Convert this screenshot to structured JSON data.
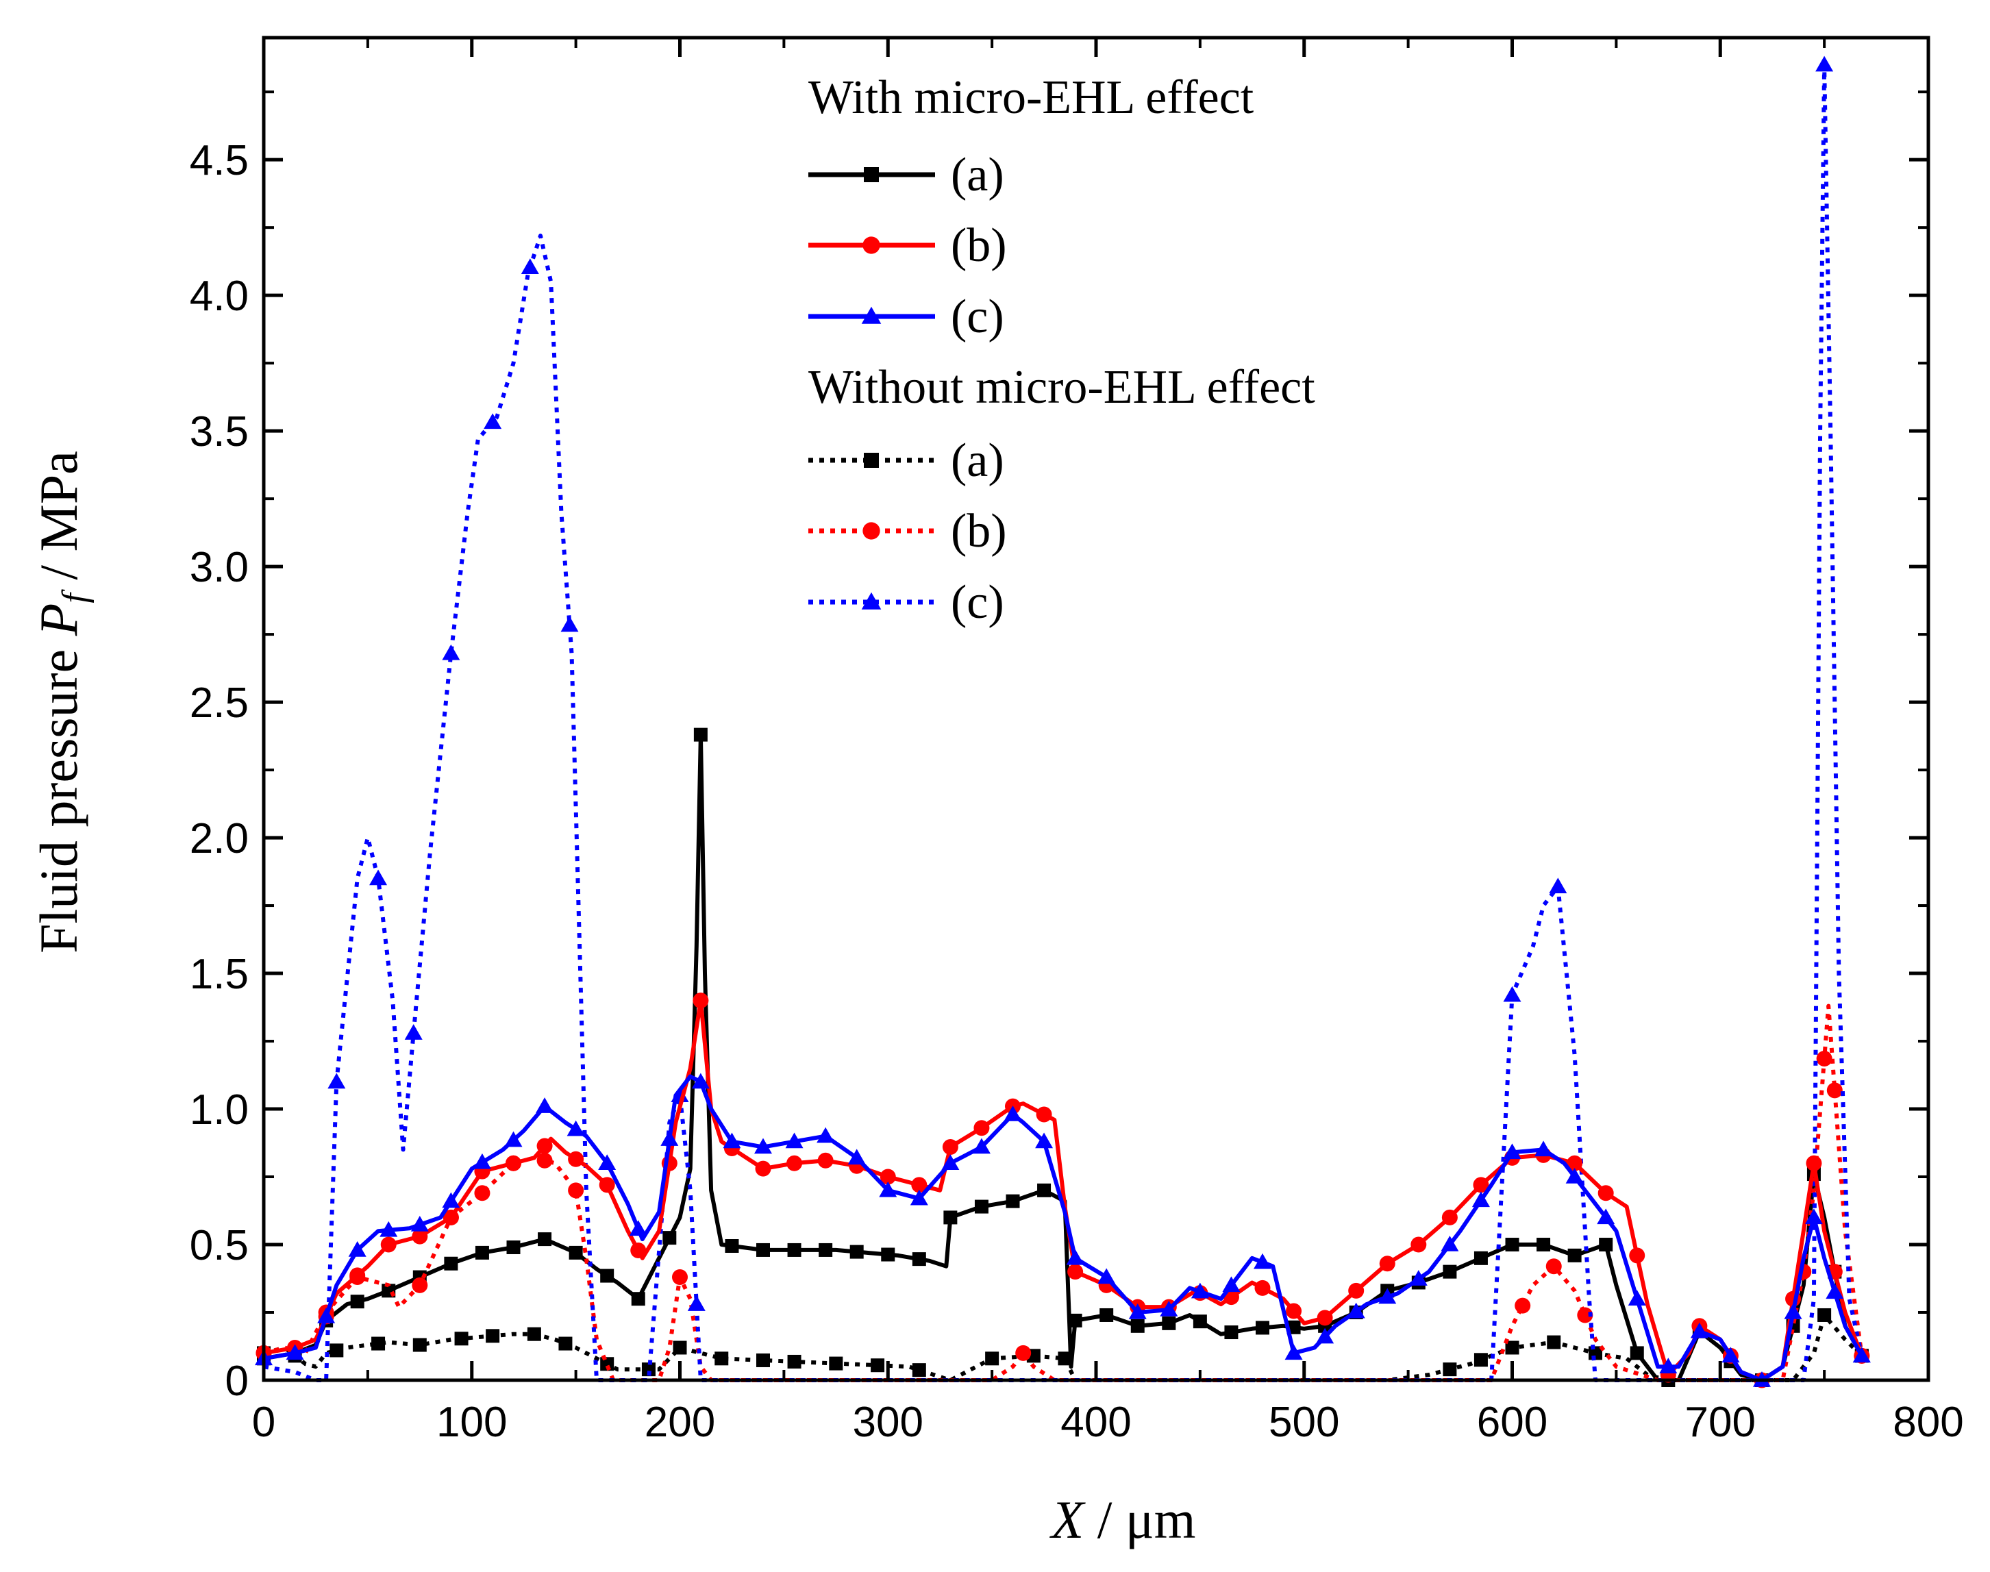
{
  "chart_data": {
    "type": "line",
    "xlabel": "X / μm",
    "xlabel_parts": {
      "var": "X",
      "unit": " / μm"
    },
    "ylabel": "Fluid pressure  Pf / MPa",
    "ylabel_parts": {
      "prefix": "Fluid pressure ",
      "var": "P",
      "sub": "f",
      "unit": " / MPa"
    },
    "xlim": [
      0,
      800
    ],
    "ylim": [
      0,
      4.95
    ],
    "xticks": [
      0,
      100,
      200,
      300,
      400,
      500,
      600,
      700,
      800
    ],
    "yticks": [
      0,
      0.5,
      1.0,
      1.5,
      2.0,
      2.5,
      3.0,
      3.5,
      4.0,
      4.5
    ],
    "xtick_labels": [
      "0",
      "100",
      "200",
      "300",
      "400",
      "500",
      "600",
      "700",
      "800"
    ],
    "ytick_labels": [
      "0",
      "0.5",
      "1.0",
      "1.5",
      "2.0",
      "2.5",
      "3.0",
      "3.5",
      "4.0",
      "4.5"
    ],
    "grid": false,
    "legend_position": "top-center",
    "legend_groups": [
      {
        "title": "With micro-EHL effect",
        "entries": [
          "(a)",
          "(b)",
          "(c)"
        ]
      },
      {
        "title": "Without micro-EHL effect",
        "entries": [
          "(a)",
          "(b)",
          "(c)"
        ]
      }
    ],
    "series": [
      {
        "name": "(a) with micro-EHL",
        "color": "#000000",
        "style": "solid",
        "marker": "square",
        "x": [
          0,
          15,
          25,
          30,
          40,
          50,
          60,
          75,
          90,
          105,
          120,
          135,
          150,
          160,
          170,
          180,
          190,
          200,
          205,
          208,
          210,
          212,
          215,
          220,
          240,
          260,
          275,
          290,
          305,
          320,
          328,
          330,
          345,
          360,
          375,
          385,
          388,
          390,
          405,
          420,
          435,
          445,
          460,
          475,
          490,
          500,
          510,
          525,
          540,
          555,
          570,
          585,
          600,
          615,
          630,
          645,
          650,
          660,
          670,
          680,
          690,
          700,
          710,
          720,
          730,
          740,
          745,
          750,
          760,
          768
        ],
        "y": [
          0.08,
          0.1,
          0.13,
          0.22,
          0.28,
          0.3,
          0.33,
          0.38,
          0.43,
          0.47,
          0.49,
          0.52,
          0.47,
          0.41,
          0.36,
          0.3,
          0.45,
          0.6,
          0.78,
          1.6,
          2.38,
          1.5,
          0.7,
          0.5,
          0.48,
          0.48,
          0.48,
          0.47,
          0.46,
          0.44,
          0.42,
          0.6,
          0.64,
          0.66,
          0.7,
          0.66,
          0.05,
          0.22,
          0.24,
          0.2,
          0.21,
          0.24,
          0.17,
          0.19,
          0.2,
          0.19,
          0.2,
          0.25,
          0.33,
          0.36,
          0.4,
          0.45,
          0.5,
          0.5,
          0.46,
          0.5,
          0.35,
          0.1,
          0.0,
          0.0,
          0.18,
          0.12,
          0.02,
          0.0,
          0.05,
          0.35,
          0.76,
          0.6,
          0.2,
          0.09
        ],
        "markers_x": [
          0,
          15,
          30,
          45,
          60,
          75,
          90,
          105,
          120,
          135,
          150,
          165,
          180,
          195,
          210,
          225,
          240,
          255,
          270,
          285,
          300,
          315,
          330,
          345,
          360,
          375,
          390,
          405,
          420,
          435,
          450,
          465,
          480,
          495,
          510,
          525,
          540,
          555,
          570,
          585,
          600,
          615,
          630,
          645,
          660,
          675,
          690,
          705,
          720,
          735,
          745,
          755,
          768
        ]
      },
      {
        "name": "(b) with micro-EHL",
        "color": "#ff0000",
        "style": "solid",
        "marker": "circle",
        "x": [
          0,
          15,
          25,
          35,
          50,
          60,
          75,
          90,
          105,
          120,
          130,
          138,
          145,
          155,
          165,
          175,
          182,
          190,
          198,
          205,
          210,
          215,
          220,
          240,
          255,
          270,
          285,
          300,
          315,
          325,
          330,
          345,
          360,
          365,
          375,
          380,
          385,
          390,
          405,
          420,
          435,
          448,
          460,
          475,
          490,
          500,
          510,
          525,
          540,
          555,
          570,
          585,
          600,
          615,
          630,
          645,
          655,
          665,
          675,
          685,
          690,
          700,
          710,
          720,
          730,
          740,
          745,
          750,
          760,
          768
        ],
        "y": [
          0.1,
          0.12,
          0.15,
          0.32,
          0.42,
          0.5,
          0.53,
          0.6,
          0.77,
          0.8,
          0.82,
          0.89,
          0.84,
          0.79,
          0.72,
          0.55,
          0.45,
          0.55,
          0.95,
          1.15,
          1.4,
          1.0,
          0.88,
          0.78,
          0.8,
          0.81,
          0.79,
          0.75,
          0.72,
          0.7,
          0.86,
          0.93,
          1.01,
          1.02,
          0.98,
          0.96,
          0.64,
          0.4,
          0.35,
          0.27,
          0.27,
          0.33,
          0.28,
          0.36,
          0.3,
          0.21,
          0.23,
          0.33,
          0.43,
          0.5,
          0.6,
          0.72,
          0.82,
          0.83,
          0.8,
          0.69,
          0.64,
          0.28,
          0.02,
          0.1,
          0.2,
          0.15,
          0.03,
          0.0,
          0.05,
          0.55,
          0.8,
          0.55,
          0.25,
          0.09
        ],
        "markers_x": [
          0,
          15,
          30,
          45,
          60,
          75,
          90,
          105,
          120,
          135,
          150,
          165,
          180,
          195,
          210,
          225,
          240,
          255,
          270,
          285,
          300,
          315,
          330,
          345,
          360,
          375,
          390,
          405,
          420,
          435,
          450,
          465,
          480,
          495,
          510,
          525,
          540,
          555,
          570,
          585,
          600,
          615,
          630,
          645,
          660,
          675,
          690,
          705,
          720,
          735,
          745,
          755,
          768
        ]
      },
      {
        "name": "(c) with micro-EHL",
        "color": "#0000ff",
        "style": "solid",
        "marker": "triangle",
        "x": [
          0,
          15,
          25,
          35,
          45,
          55,
          70,
          85,
          100,
          115,
          125,
          135,
          145,
          155,
          165,
          175,
          182,
          190,
          198,
          205,
          210,
          215,
          225,
          240,
          255,
          270,
          285,
          300,
          315,
          330,
          345,
          360,
          365,
          375,
          385,
          390,
          405,
          420,
          435,
          445,
          460,
          475,
          485,
          495,
          505,
          515,
          530,
          545,
          560,
          575,
          590,
          600,
          615,
          625,
          635,
          650,
          660,
          670,
          680,
          690,
          700,
          710,
          720,
          730,
          740,
          745,
          750,
          760,
          768
        ],
        "y": [
          0.08,
          0.1,
          0.12,
          0.35,
          0.48,
          0.55,
          0.56,
          0.6,
          0.78,
          0.85,
          0.92,
          1.01,
          0.95,
          0.9,
          0.8,
          0.65,
          0.52,
          0.62,
          1.05,
          1.12,
          1.1,
          1.0,
          0.88,
          0.86,
          0.88,
          0.9,
          0.82,
          0.7,
          0.67,
          0.8,
          0.86,
          0.98,
          0.95,
          0.88,
          0.62,
          0.45,
          0.38,
          0.25,
          0.26,
          0.34,
          0.3,
          0.45,
          0.42,
          0.1,
          0.12,
          0.2,
          0.28,
          0.32,
          0.4,
          0.55,
          0.72,
          0.84,
          0.85,
          0.8,
          0.7,
          0.55,
          0.3,
          0.05,
          0.05,
          0.18,
          0.15,
          0.03,
          0.0,
          0.05,
          0.45,
          0.6,
          0.45,
          0.2,
          0.09
        ],
        "markers_x": [
          0,
          15,
          30,
          45,
          60,
          75,
          90,
          105,
          120,
          135,
          150,
          165,
          180,
          195,
          210,
          225,
          240,
          255,
          270,
          285,
          300,
          315,
          330,
          345,
          360,
          375,
          390,
          405,
          420,
          435,
          450,
          465,
          480,
          495,
          510,
          525,
          540,
          555,
          570,
          585,
          600,
          615,
          630,
          645,
          660,
          675,
          690,
          705,
          720,
          735,
          745,
          755,
          768
        ]
      },
      {
        "name": "(a) without micro-EHL",
        "color": "#000000",
        "style": "dotted",
        "marker": "square",
        "x": [
          0,
          10,
          20,
          25,
          30,
          40,
          60,
          75,
          90,
          105,
          120,
          130,
          140,
          150,
          160,
          170,
          190,
          200,
          210,
          220,
          250,
          280,
          310,
          330,
          350,
          370,
          385,
          390,
          420,
          460,
          500,
          540,
          560,
          580,
          600,
          620,
          640,
          655,
          665,
          675,
          690,
          700,
          720,
          735,
          745,
          750,
          760,
          768
        ],
        "y": [
          0.1,
          0.12,
          0.06,
          0.05,
          0.1,
          0.12,
          0.14,
          0.13,
          0.15,
          0.16,
          0.17,
          0.17,
          0.15,
          0.12,
          0.08,
          0.04,
          0.04,
          0.12,
          0.1,
          0.08,
          0.07,
          0.06,
          0.05,
          0.0,
          0.08,
          0.09,
          0.08,
          0.0,
          0.0,
          0.0,
          0.0,
          0.0,
          0.02,
          0.06,
          0.12,
          0.14,
          0.1,
          0.08,
          0.02,
          0.0,
          0.0,
          0.0,
          0.0,
          0.0,
          0.1,
          0.24,
          0.15,
          0.09
        ],
        "markers_x": [
          0,
          15,
          35,
          55,
          75,
          95,
          110,
          130,
          145,
          165,
          185,
          200,
          220,
          240,
          255,
          275,
          295,
          315,
          350,
          370,
          385,
          570,
          585,
          600,
          620,
          640,
          750,
          768
        ]
      },
      {
        "name": "(b) without micro-EHL",
        "color": "#ff0000",
        "style": "dotted",
        "marker": "circle",
        "x": [
          0,
          10,
          20,
          30,
          45,
          60,
          65,
          75,
          90,
          105,
          120,
          130,
          140,
          150,
          155,
          160,
          168,
          190,
          195,
          200,
          205,
          210,
          215,
          350,
          360,
          365,
          370,
          380,
          590,
          600,
          610,
          620,
          630,
          640,
          650,
          670,
          730,
          740,
          745,
          752,
          760,
          768
        ],
        "y": [
          0.1,
          0.12,
          0.1,
          0.25,
          0.38,
          0.35,
          0.27,
          0.35,
          0.6,
          0.69,
          0.8,
          0.82,
          0.8,
          0.7,
          0.45,
          0.15,
          0.0,
          0.0,
          0.12,
          0.38,
          0.3,
          0.05,
          0.0,
          0.0,
          0.05,
          0.1,
          0.05,
          0.0,
          0.0,
          0.2,
          0.35,
          0.42,
          0.33,
          0.15,
          0.05,
          0.0,
          0.0,
          0.4,
          0.7,
          1.38,
          0.55,
          0.09
        ],
        "markers_x": [
          0,
          30,
          45,
          75,
          90,
          105,
          120,
          135,
          150,
          200,
          365,
          605,
          620,
          635,
          740,
          750,
          755,
          768
        ]
      },
      {
        "name": "(c) without micro-EHL",
        "color": "#0000ff",
        "style": "dotted",
        "marker": "triangle",
        "x": [
          0,
          15,
          25,
          30,
          35,
          45,
          50,
          55,
          62,
          67,
          72,
          80,
          90,
          98,
          103,
          112,
          120,
          127,
          133,
          138,
          143,
          148,
          155,
          160,
          185,
          195,
          200,
          205,
          210,
          215,
          590,
          600,
          610,
          615,
          622,
          630,
          637,
          640,
          740,
          745,
          748,
          750,
          753,
          757,
          762,
          768
        ],
        "y": [
          0.05,
          0.03,
          0.0,
          0.0,
          1.1,
          1.85,
          2.0,
          1.85,
          1.4,
          0.85,
          1.28,
          1.95,
          2.68,
          3.2,
          3.47,
          3.55,
          3.75,
          4.08,
          4.22,
          4.05,
          3.2,
          2.68,
          0.7,
          0.0,
          0.0,
          0.95,
          1.05,
          0.7,
          0.0,
          0.0,
          0.0,
          1.42,
          1.6,
          1.75,
          1.82,
          1.2,
          0.3,
          0.0,
          0.0,
          0.3,
          3.5,
          4.85,
          3.5,
          1.5,
          0.3,
          0.09
        ],
        "markers_x": [
          35,
          55,
          72,
          90,
          110,
          128,
          147,
          200,
          208,
          600,
          622,
          750,
          768
        ]
      }
    ]
  }
}
